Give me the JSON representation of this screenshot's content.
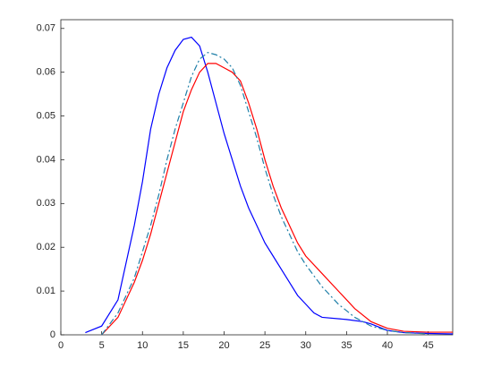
{
  "chart_data": {
    "type": "line",
    "xlim": [
      0,
      48
    ],
    "ylim": [
      0,
      0.072
    ],
    "xticks": [
      0,
      5,
      10,
      15,
      20,
      25,
      30,
      35,
      40,
      45
    ],
    "yticks": [
      0,
      0.01,
      0.02,
      0.03,
      0.04,
      0.05,
      0.06,
      0.07
    ],
    "series": [
      {
        "color": "#0000ff",
        "style": "solid",
        "x": [
          3,
          5,
          7,
          9,
          10,
          11,
          12,
          13,
          14,
          15,
          16,
          17,
          18,
          19,
          20,
          21,
          22,
          23,
          24,
          25,
          26,
          27,
          28,
          29,
          30,
          31,
          32,
          35,
          37,
          38,
          40,
          42,
          45,
          48
        ],
        "values": [
          0.0005,
          0.002,
          0.008,
          0.025,
          0.035,
          0.047,
          0.055,
          0.061,
          0.065,
          0.0675,
          0.068,
          0.066,
          0.06,
          0.053,
          0.046,
          0.04,
          0.034,
          0.029,
          0.025,
          0.021,
          0.018,
          0.015,
          0.012,
          0.009,
          0.007,
          0.005,
          0.004,
          0.0035,
          0.003,
          0.0025,
          0.001,
          0.0005,
          0.0003,
          0.0002
        ]
      },
      {
        "color": "#ff0000",
        "style": "solid",
        "x": [
          5,
          7,
          9,
          10,
          11,
          12,
          13,
          14,
          15,
          16,
          17,
          18,
          19,
          20,
          21,
          22,
          23,
          24,
          25,
          26,
          27,
          28,
          29,
          30,
          32,
          34,
          36,
          38,
          40,
          42,
          45,
          48
        ],
        "values": [
          0,
          0.004,
          0.012,
          0.017,
          0.023,
          0.03,
          0.037,
          0.044,
          0.051,
          0.056,
          0.06,
          0.062,
          0.062,
          0.061,
          0.06,
          0.058,
          0.053,
          0.047,
          0.04,
          0.034,
          0.029,
          0.025,
          0.021,
          0.018,
          0.014,
          0.01,
          0.006,
          0.003,
          0.0015,
          0.0008,
          0.0006,
          0.0006
        ]
      },
      {
        "color": "#1f7fa8",
        "style": "dashdot",
        "x": [
          5,
          7,
          9,
          10,
          11,
          12,
          13,
          14,
          15,
          16,
          17,
          18,
          19,
          20,
          21,
          22,
          23,
          24,
          25,
          26,
          27,
          28,
          29,
          30,
          32,
          34,
          36,
          38,
          40,
          42,
          45
        ],
        "values": [
          0,
          0.005,
          0.013,
          0.019,
          0.025,
          0.032,
          0.04,
          0.047,
          0.053,
          0.059,
          0.063,
          0.0645,
          0.064,
          0.063,
          0.061,
          0.057,
          0.051,
          0.045,
          0.038,
          0.032,
          0.027,
          0.023,
          0.019,
          0.016,
          0.011,
          0.007,
          0.004,
          0.002,
          0.001,
          0.0005,
          0.0002
        ]
      }
    ]
  }
}
